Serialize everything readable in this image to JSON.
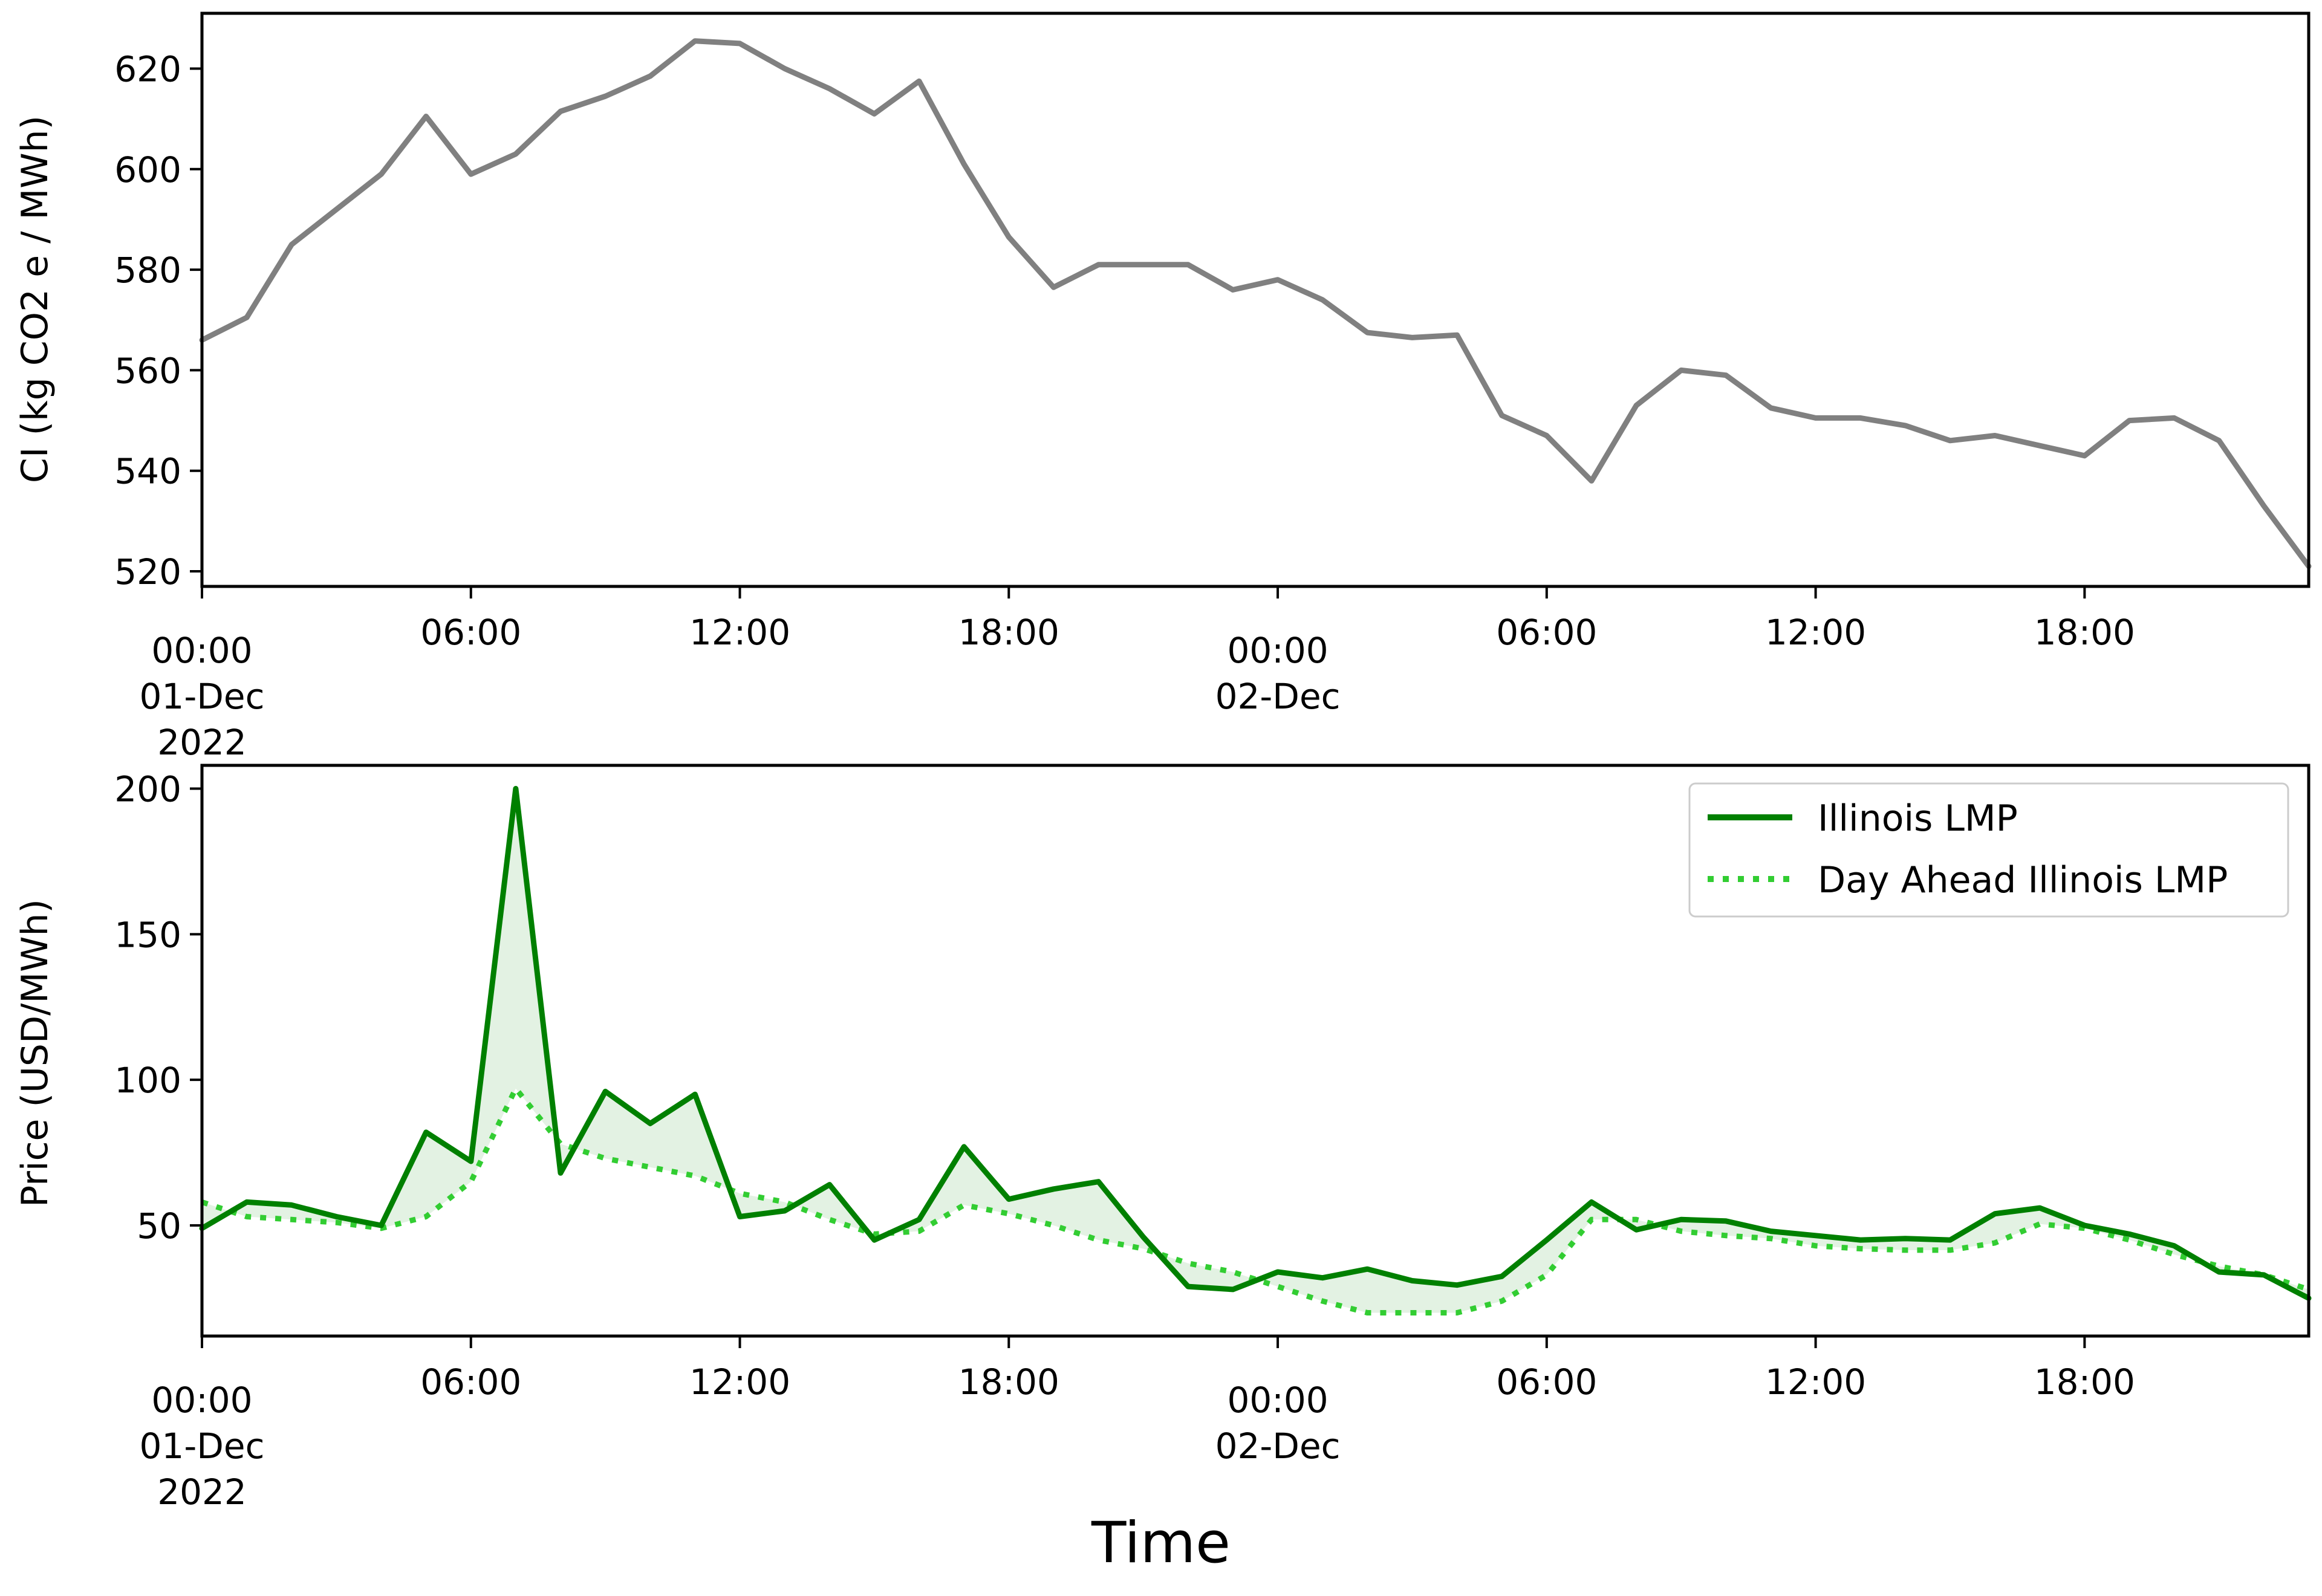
{
  "figure": {
    "xlabel": "Time"
  },
  "colors": {
    "ci_line": "#808080",
    "lmp_line": "#008000",
    "da_line": "#32cd32",
    "fill": "#d9eed9"
  },
  "chart_data": [
    {
      "type": "line",
      "title": "",
      "xlabel": "",
      "ylabel": "CI (kg CO2 e / MWh)",
      "xlim": [
        "2022-12-01 00:00",
        "2022-12-02 23:00"
      ],
      "ylim": [
        517,
        631
      ],
      "y_ticks": [
        520,
        540,
        560,
        580,
        600,
        620
      ],
      "x_ticks": [
        {
          "hour": 0,
          "lines": [
            "00:00",
            "01-Dec",
            "2022"
          ]
        },
        {
          "hour": 6,
          "lines": [
            "06:00"
          ]
        },
        {
          "hour": 12,
          "lines": [
            "12:00"
          ]
        },
        {
          "hour": 18,
          "lines": [
            "18:00"
          ]
        },
        {
          "hour": 24,
          "lines": [
            "00:00",
            "02-Dec"
          ]
        },
        {
          "hour": 30,
          "lines": [
            "06:00"
          ]
        },
        {
          "hour": 36,
          "lines": [
            "12:00"
          ]
        },
        {
          "hour": 42,
          "lines": [
            "18:00"
          ]
        }
      ],
      "x_hours": [
        0,
        1,
        2,
        3,
        4,
        5,
        6,
        7,
        8,
        9,
        10,
        11,
        12,
        13,
        14,
        15,
        16,
        17,
        18,
        19,
        20,
        21,
        22,
        23,
        24,
        25,
        26,
        27,
        28,
        29,
        30,
        31,
        32,
        33,
        34,
        35,
        36,
        37,
        38,
        39,
        40,
        41,
        42,
        43,
        44,
        45,
        46,
        47
      ],
      "series": [
        {
          "values": [
            566,
            570.5,
            585,
            592,
            599,
            610.5,
            599,
            603,
            611.5,
            614.5,
            618.5,
            625.5,
            625,
            620,
            616,
            611,
            617.5,
            601,
            586.5,
            576.5,
            581,
            581,
            581,
            576,
            578,
            574,
            567.5,
            566.5,
            567,
            551,
            547,
            538,
            553,
            560,
            559,
            552.5,
            550.5,
            550.5,
            549,
            546,
            547,
            545,
            543,
            550,
            550.5,
            546,
            533,
            521
          ]
        }
      ]
    },
    {
      "type": "line",
      "title": "",
      "xlabel": "",
      "ylabel": "Price (USD/MWh)",
      "xlim": [
        "2022-12-01 00:00",
        "2022-12-02 23:00"
      ],
      "ylim": [
        12,
        208
      ],
      "y_ticks": [
        50,
        100,
        150,
        200
      ],
      "legend": "top-right",
      "x_ticks": [
        {
          "hour": 0,
          "lines": [
            "00:00",
            "01-Dec",
            "2022"
          ]
        },
        {
          "hour": 6,
          "lines": [
            "06:00"
          ]
        },
        {
          "hour": 12,
          "lines": [
            "12:00"
          ]
        },
        {
          "hour": 18,
          "lines": [
            "18:00"
          ]
        },
        {
          "hour": 24,
          "lines": [
            "00:00",
            "02-Dec"
          ]
        },
        {
          "hour": 30,
          "lines": [
            "06:00"
          ]
        },
        {
          "hour": 36,
          "lines": [
            "12:00"
          ]
        },
        {
          "hour": 42,
          "lines": [
            "18:00"
          ]
        }
      ],
      "x_hours": [
        0,
        1,
        2,
        3,
        4,
        5,
        6,
        7,
        8,
        9,
        10,
        11,
        12,
        13,
        14,
        15,
        16,
        17,
        18,
        19,
        20,
        21,
        22,
        23,
        24,
        25,
        26,
        27,
        28,
        29,
        30,
        31,
        32,
        33,
        34,
        35,
        36,
        37,
        38,
        39,
        40,
        41,
        42,
        43,
        44,
        45,
        46,
        47
      ],
      "series": [
        {
          "name": "Illinois LMP",
          "style": "solid",
          "values": [
            49,
            58,
            57,
            53,
            50,
            82,
            72,
            200,
            68,
            96,
            85,
            95,
            53,
            55,
            64,
            45,
            52,
            77,
            59,
            62.5,
            65,
            46,
            29,
            28,
            34,
            32,
            35,
            31,
            29.5,
            32.5,
            45,
            58,
            48.5,
            52,
            51.5,
            48,
            46.5,
            45,
            45.5,
            45,
            54,
            56,
            50,
            47,
            43,
            34,
            33,
            25
          ]
        },
        {
          "name": "Day Ahead Illinois LMP",
          "style": "dotted",
          "values": [
            58,
            53,
            52,
            51,
            49,
            53,
            65,
            97,
            78,
            73,
            70,
            67,
            61,
            58,
            52,
            47,
            48,
            57,
            54,
            50,
            45,
            42,
            37,
            34,
            29,
            24,
            20,
            20,
            20,
            24,
            33,
            52,
            52,
            48,
            46.5,
            45.5,
            43,
            42,
            41.5,
            41.5,
            44,
            50.5,
            49,
            45,
            40,
            36,
            33,
            28
          ]
        }
      ]
    }
  ]
}
